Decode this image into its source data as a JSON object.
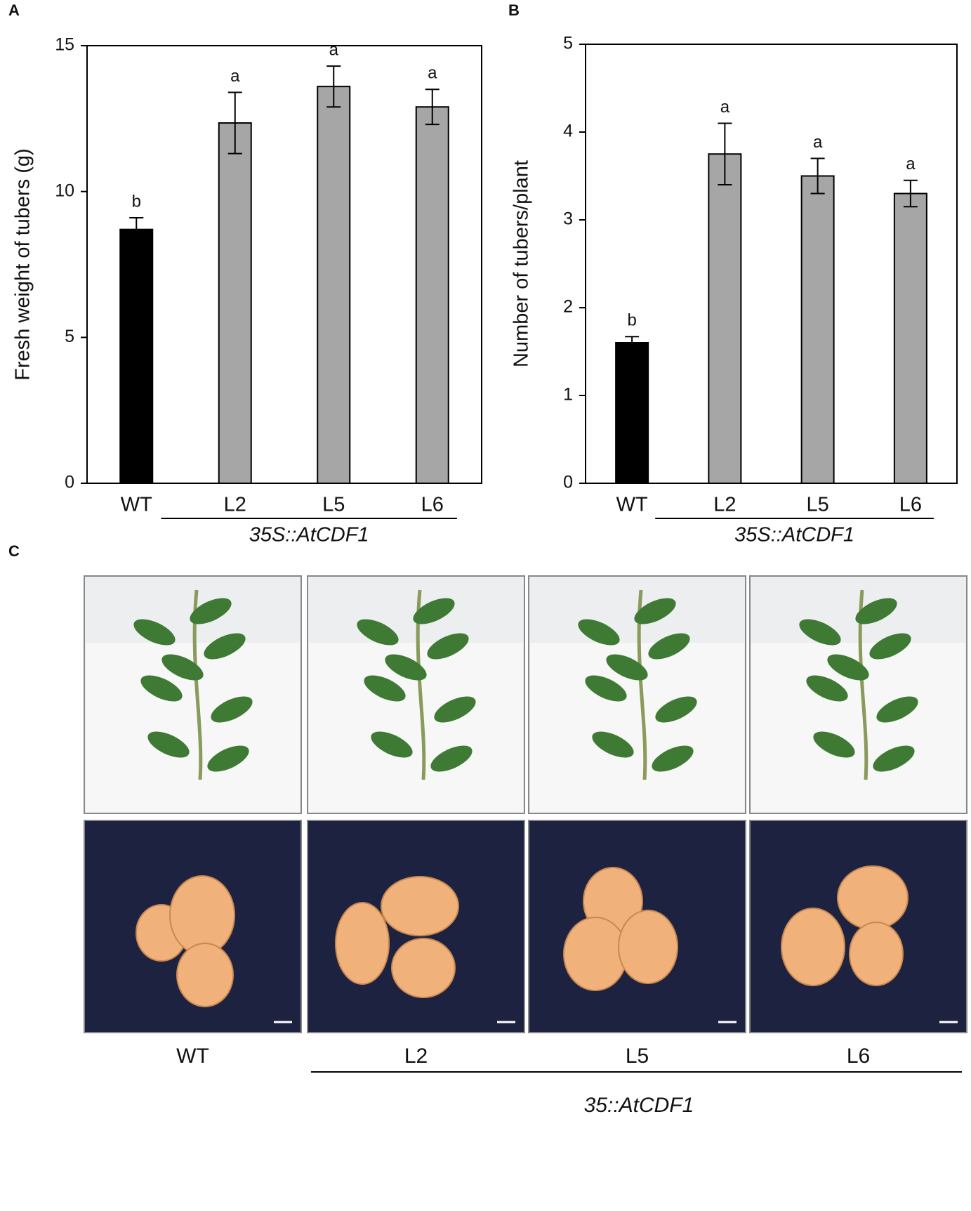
{
  "chart_data": [
    {
      "type": "bar",
      "panel_label": "A",
      "y_label": "Fresh weight of tubers (g)",
      "categories": [
        "WT",
        "L2",
        "L5",
        "L6"
      ],
      "values": [
        8.7,
        12.35,
        13.6,
        12.9
      ],
      "errors": [
        0.4,
        1.05,
        0.7,
        0.6
      ],
      "annotations": [
        "b",
        "a",
        "a",
        "a"
      ],
      "colors": [
        "#000000",
        "#a6a6a6",
        "#a6a6a6",
        "#a6a6a6"
      ],
      "group_label": "35S::AtCDF1",
      "ylim": [
        0,
        15
      ],
      "yticks": [
        0,
        5,
        10,
        15
      ]
    },
    {
      "type": "bar",
      "panel_label": "B",
      "y_label": "Number of tubers/plant",
      "categories": [
        "WT",
        "L2",
        "L5",
        "L6"
      ],
      "values": [
        1.6,
        3.75,
        3.5,
        3.3
      ],
      "errors": [
        0.07,
        0.35,
        0.2,
        0.15
      ],
      "annotations": [
        "b",
        "a",
        "a",
        "a"
      ],
      "colors": [
        "#000000",
        "#a6a6a6",
        "#a6a6a6",
        "#a6a6a6"
      ],
      "group_label": "35S::AtCDF1",
      "ylim": [
        0,
        5
      ],
      "yticks": [
        0,
        1,
        2,
        3,
        4,
        5
      ]
    }
  ],
  "photo_panel": {
    "panel_label": "C",
    "columns": [
      "WT",
      "L2",
      "L5",
      "L6"
    ],
    "group_label": "35::AtCDF1"
  }
}
